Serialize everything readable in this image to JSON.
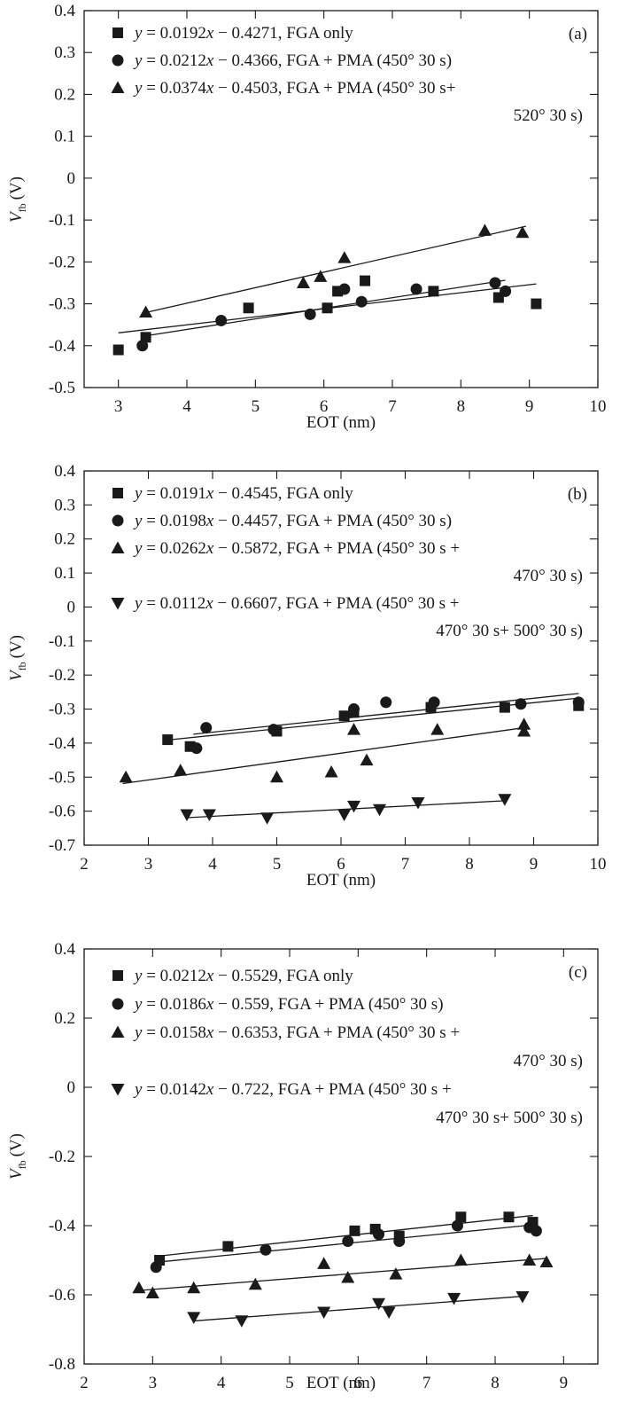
{
  "chart_data": [
    {
      "type": "scatter",
      "panel_label": "(a)",
      "xlabel": "EOT (nm)",
      "ylabel_main": "V",
      "ylabel_sub": "fb",
      "ylabel_unit": "(V)",
      "xlim": [
        2.5,
        10
      ],
      "ylim": [
        -0.5,
        0.4
      ],
      "xticks": [
        3,
        4,
        5,
        6,
        7,
        8,
        9,
        10
      ],
      "yticks": [
        -0.5,
        -0.4,
        -0.3,
        -0.2,
        -0.1,
        0,
        0.1,
        0.2,
        0.3,
        0.4
      ],
      "legend_position": "top-left",
      "series": [
        {
          "marker": "square",
          "legend": {
            "y": "y",
            "rest": " = 0.0192",
            "x": "x",
            "tail": " − 0.4271, FGA only",
            "line2": ""
          },
          "fit": {
            "slope": 0.0192,
            "intercept": -0.4271,
            "xrange": [
              3.0,
              9.1
            ]
          },
          "points": [
            [
              3.0,
              -0.41
            ],
            [
              3.4,
              -0.38
            ],
            [
              4.9,
              -0.31
            ],
            [
              6.05,
              -0.31
            ],
            [
              6.2,
              -0.27
            ],
            [
              6.6,
              -0.245
            ],
            [
              7.6,
              -0.27
            ],
            [
              8.55,
              -0.285
            ],
            [
              9.1,
              -0.3
            ]
          ]
        },
        {
          "marker": "circle",
          "legend": {
            "y": "y",
            "rest": " = 0.0212",
            "x": "x",
            "tail": " − 0.4366, FGA + PMA (450° 30 s)",
            "line2": ""
          },
          "fit": {
            "slope": 0.0212,
            "intercept": -0.4366,
            "xrange": [
              3.35,
              8.65
            ]
          },
          "points": [
            [
              3.35,
              -0.4
            ],
            [
              4.5,
              -0.34
            ],
            [
              5.8,
              -0.325
            ],
            [
              6.3,
              -0.265
            ],
            [
              6.55,
              -0.295
            ],
            [
              7.35,
              -0.265
            ],
            [
              8.5,
              -0.25
            ],
            [
              8.65,
              -0.27
            ]
          ]
        },
        {
          "marker": "triangle-up",
          "legend": {
            "y": "y",
            "rest": " = 0.0374",
            "x": "x",
            "tail": " − 0.4503, FGA + PMA (450° 30 s+",
            "line2": "520° 30 s)"
          },
          "fit": {
            "slope": 0.0374,
            "intercept": -0.4503,
            "xrange": [
              3.4,
              8.95
            ]
          },
          "points": [
            [
              3.4,
              -0.32
            ],
            [
              5.7,
              -0.25
            ],
            [
              5.95,
              -0.235
            ],
            [
              6.3,
              -0.19
            ],
            [
              8.35,
              -0.125
            ],
            [
              8.9,
              -0.13
            ]
          ]
        }
      ]
    },
    {
      "type": "scatter",
      "panel_label": "(b)",
      "xlabel": "EOT (nm)",
      "ylabel_main": "V",
      "ylabel_sub": "fb",
      "ylabel_unit": "(V)",
      "xlim": [
        2,
        10
      ],
      "ylim": [
        -0.7,
        0.4
      ],
      "xticks": [
        2,
        3,
        4,
        5,
        6,
        7,
        8,
        9,
        10
      ],
      "yticks": [
        -0.7,
        -0.6,
        -0.5,
        -0.4,
        -0.3,
        -0.2,
        -0.1,
        0,
        0.1,
        0.2,
        0.3,
        0.4
      ],
      "legend_position": "top-left",
      "series": [
        {
          "marker": "square",
          "legend": {
            "y": "y",
            "rest": " = 0.0191",
            "x": "x",
            "tail": " − 0.4545, FGA only",
            "line2": ""
          },
          "fit": {
            "slope": 0.0191,
            "intercept": -0.4545,
            "xrange": [
              3.3,
              9.7
            ]
          },
          "points": [
            [
              3.3,
              -0.39
            ],
            [
              3.65,
              -0.41
            ],
            [
              5.0,
              -0.365
            ],
            [
              6.05,
              -0.32
            ],
            [
              6.2,
              -0.31
            ],
            [
              7.4,
              -0.295
            ],
            [
              8.55,
              -0.295
            ],
            [
              9.7,
              -0.29
            ]
          ]
        },
        {
          "marker": "circle",
          "legend": {
            "y": "y",
            "rest": " = 0.0198",
            "x": "x",
            "tail": " − 0.4457, FGA + PMA (450° 30 s)",
            "line2": ""
          },
          "fit": {
            "slope": 0.0198,
            "intercept": -0.4457,
            "xrange": [
              3.7,
              9.7
            ]
          },
          "points": [
            [
              3.75,
              -0.415
            ],
            [
              3.9,
              -0.355
            ],
            [
              4.95,
              -0.36
            ],
            [
              6.2,
              -0.3
            ],
            [
              6.7,
              -0.28
            ],
            [
              7.45,
              -0.28
            ],
            [
              8.8,
              -0.285
            ],
            [
              9.7,
              -0.28
            ]
          ]
        },
        {
          "marker": "triangle-up",
          "legend": {
            "y": "y",
            "rest": " = 0.0262",
            "x": "x",
            "tail": " − 0.5872, FGA + PMA (450° 30 s +",
            "line2": "470° 30 s)"
          },
          "fit": {
            "slope": 0.0262,
            "intercept": -0.5872,
            "xrange": [
              2.6,
              8.85
            ]
          },
          "points": [
            [
              2.65,
              -0.5
            ],
            [
              3.5,
              -0.48
            ],
            [
              5.0,
              -0.5
            ],
            [
              5.85,
              -0.485
            ],
            [
              6.2,
              -0.36
            ],
            [
              6.4,
              -0.45
            ],
            [
              7.5,
              -0.36
            ],
            [
              8.85,
              -0.345
            ],
            [
              8.85,
              -0.365
            ]
          ]
        },
        {
          "marker": "triangle-down",
          "legend": {
            "y": "y",
            "rest": " = 0.0112",
            "x": "x",
            "tail": " − 0.6607, FGA + PMA (450° 30 s +",
            "line2": "470° 30 s+ 500° 30 s)"
          },
          "fit": {
            "slope": 0.0112,
            "intercept": -0.6607,
            "xrange": [
              3.6,
              8.55
            ]
          },
          "points": [
            [
              3.6,
              -0.61
            ],
            [
              3.95,
              -0.61
            ],
            [
              4.85,
              -0.62
            ],
            [
              6.05,
              -0.61
            ],
            [
              6.2,
              -0.585
            ],
            [
              6.6,
              -0.595
            ],
            [
              7.2,
              -0.575
            ],
            [
              8.55,
              -0.565
            ]
          ]
        }
      ]
    },
    {
      "type": "scatter",
      "panel_label": "(c)",
      "xlabel": "EOT (nm)",
      "ylabel_main": "V",
      "ylabel_sub": "fb",
      "ylabel_unit": "(V)",
      "xlim": [
        2,
        9.5
      ],
      "ylim": [
        -0.8,
        0.4
      ],
      "xticks": [
        2,
        3,
        4,
        5,
        6,
        7,
        8,
        9
      ],
      "yticks": [
        -0.8,
        -0.6,
        -0.4,
        -0.2,
        0,
        0.2,
        0.4
      ],
      "legend_position": "top-left",
      "series": [
        {
          "marker": "square",
          "legend": {
            "y": "y",
            "rest": " = 0.0212",
            "x": "x",
            "tail": " − 0.5529, FGA only",
            "line2": ""
          },
          "fit": {
            "slope": 0.0212,
            "intercept": -0.5529,
            "xrange": [
              3.05,
              8.55
            ]
          },
          "points": [
            [
              3.1,
              -0.5
            ],
            [
              4.1,
              -0.46
            ],
            [
              5.95,
              -0.415
            ],
            [
              6.25,
              -0.41
            ],
            [
              6.6,
              -0.43
            ],
            [
              7.5,
              -0.375
            ],
            [
              8.2,
              -0.375
            ],
            [
              8.55,
              -0.39
            ]
          ]
        },
        {
          "marker": "circle",
          "legend": {
            "y": "y",
            "rest": " = 0.0186",
            "x": "x",
            "tail": " − 0.559, FGA + PMA (450° 30 s)",
            "line2": ""
          },
          "fit": {
            "slope": 0.0186,
            "intercept": -0.559,
            "xrange": [
              3.05,
              8.6
            ]
          },
          "points": [
            [
              3.05,
              -0.52
            ],
            [
              4.65,
              -0.47
            ],
            [
              5.85,
              -0.445
            ],
            [
              6.3,
              -0.425
            ],
            [
              6.6,
              -0.445
            ],
            [
              7.45,
              -0.4
            ],
            [
              8.5,
              -0.405
            ],
            [
              8.6,
              -0.415
            ]
          ]
        },
        {
          "marker": "triangle-up",
          "legend": {
            "y": "y",
            "rest": " = 0.0158",
            "x": "x",
            "tail": " − 0.6353, FGA + PMA (450° 30 s +",
            "line2": "470° 30 s)"
          },
          "fit": {
            "slope": 0.0158,
            "intercept": -0.6353,
            "xrange": [
              2.8,
              8.75
            ]
          },
          "points": [
            [
              2.8,
              -0.58
            ],
            [
              3.0,
              -0.595
            ],
            [
              3.6,
              -0.58
            ],
            [
              4.5,
              -0.57
            ],
            [
              5.5,
              -0.51
            ],
            [
              5.85,
              -0.55
            ],
            [
              6.55,
              -0.54
            ],
            [
              7.5,
              -0.5
            ],
            [
              8.5,
              -0.5
            ],
            [
              8.75,
              -0.505
            ]
          ]
        },
        {
          "marker": "triangle-down",
          "legend": {
            "y": "y",
            "rest": " = 0.0142",
            "x": "x",
            "tail": " − 0.722, FGA + PMA (450° 30 s +",
            "line2": "470° 30 s+ 500° 30 s)"
          },
          "fit": {
            "slope": 0.0142,
            "intercept": -0.722,
            "xrange": [
              3.6,
              8.4
            ]
          },
          "points": [
            [
              3.6,
              -0.665
            ],
            [
              4.3,
              -0.675
            ],
            [
              5.5,
              -0.65
            ],
            [
              6.3,
              -0.625
            ],
            [
              6.45,
              -0.65
            ],
            [
              7.4,
              -0.61
            ],
            [
              8.4,
              -0.605
            ]
          ]
        }
      ]
    }
  ]
}
